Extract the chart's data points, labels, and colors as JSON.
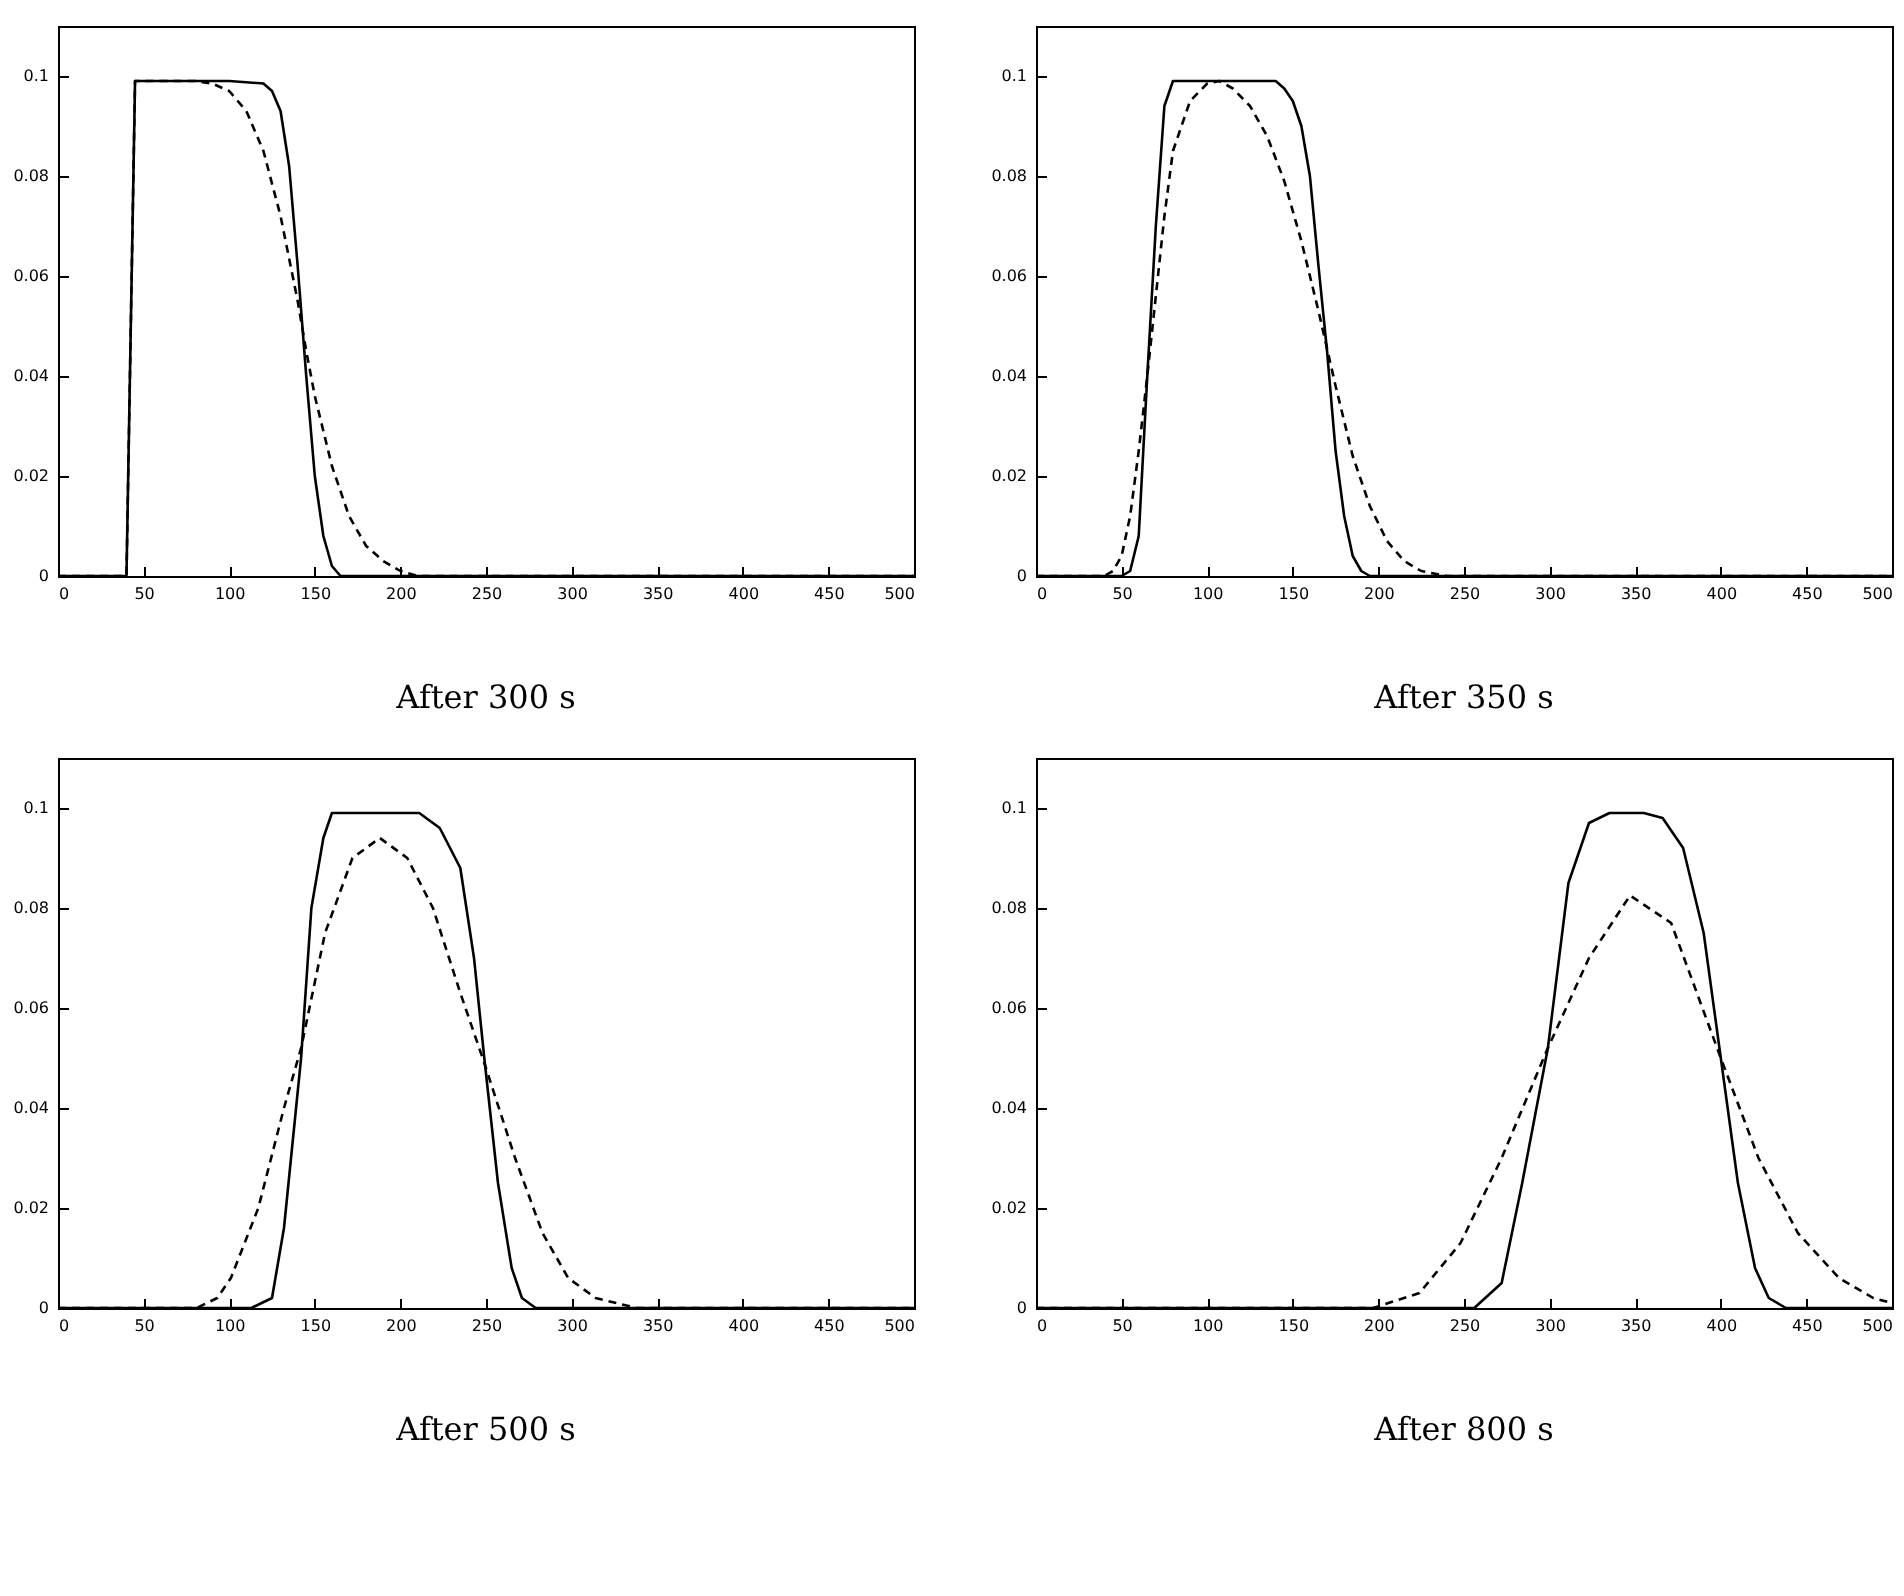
{
  "chart_data": [
    {
      "type": "line",
      "title": "After 300 s",
      "xlim": [
        0,
        500
      ],
      "ylim": [
        0,
        0.11
      ],
      "xticks": [
        0,
        50,
        100,
        150,
        200,
        250,
        300,
        350,
        400,
        450,
        500
      ],
      "yticks": [
        0,
        0.02,
        0.04,
        0.06,
        0.08,
        0.1
      ],
      "grid": false,
      "marker": "none",
      "series": [
        {
          "color": "#000000",
          "line_style": "solid",
          "x": [
            0,
            40,
            45,
            100,
            120,
            125,
            130,
            135,
            140,
            145,
            150,
            155,
            160,
            165,
            500
          ],
          "values": [
            0,
            0,
            0.099,
            0.099,
            0.0985,
            0.097,
            0.093,
            0.082,
            0.062,
            0.04,
            0.02,
            0.008,
            0.002,
            0,
            0
          ]
        },
        {
          "color": "#000000",
          "line_style": "dashed",
          "x": [
            0,
            40,
            45,
            80,
            90,
            100,
            110,
            120,
            130,
            140,
            145,
            150,
            160,
            170,
            180,
            190,
            200,
            210,
            500
          ],
          "values": [
            0,
            0,
            0.099,
            0.099,
            0.0985,
            0.097,
            0.093,
            0.085,
            0.072,
            0.055,
            0.045,
            0.036,
            0.022,
            0.012,
            0.006,
            0.003,
            0.001,
            0,
            0
          ]
        }
      ]
    },
    {
      "type": "line",
      "title": "After 350 s",
      "xlim": [
        0,
        500
      ],
      "ylim": [
        0,
        0.11
      ],
      "xticks": [
        0,
        50,
        100,
        150,
        200,
        250,
        300,
        350,
        400,
        450,
        500
      ],
      "yticks": [
        0,
        0.02,
        0.04,
        0.06,
        0.08,
        0.1
      ],
      "grid": false,
      "marker": "none",
      "series": [
        {
          "color": "#000000",
          "line_style": "solid",
          "x": [
            0,
            50,
            55,
            60,
            65,
            70,
            75,
            80,
            140,
            145,
            150,
            155,
            160,
            165,
            170,
            175,
            180,
            185,
            190,
            195,
            500
          ],
          "values": [
            0,
            0,
            0.001,
            0.008,
            0.04,
            0.07,
            0.094,
            0.099,
            0.099,
            0.0975,
            0.095,
            0.09,
            0.08,
            0.062,
            0.045,
            0.025,
            0.012,
            0.004,
            0.001,
            0,
            0
          ]
        },
        {
          "color": "#000000",
          "line_style": "dashed",
          "x": [
            0,
            40,
            45,
            50,
            55,
            60,
            65,
            70,
            75,
            80,
            90,
            100,
            107,
            115,
            125,
            135,
            145,
            155,
            165,
            175,
            185,
            195,
            205,
            215,
            225,
            240,
            500
          ],
          "values": [
            0,
            0,
            0.001,
            0.004,
            0.012,
            0.025,
            0.04,
            0.056,
            0.072,
            0.085,
            0.095,
            0.0985,
            0.099,
            0.0975,
            0.094,
            0.088,
            0.079,
            0.067,
            0.053,
            0.038,
            0.024,
            0.014,
            0.007,
            0.003,
            0.001,
            0,
            0
          ]
        }
      ]
    },
    {
      "type": "line",
      "title": "After 500 s",
      "xlim": [
        0,
        500
      ],
      "ylim": [
        0,
        0.11
      ],
      "xticks": [
        0,
        50,
        100,
        150,
        200,
        250,
        300,
        350,
        400,
        450,
        500
      ],
      "yticks": [
        0,
        0.02,
        0.04,
        0.06,
        0.08,
        0.1
      ],
      "grid": false,
      "marker": "none",
      "series": [
        {
          "color": "#000000",
          "line_style": "solid",
          "x": [
            0,
            113,
            125,
            132,
            142,
            148,
            155,
            160,
            211,
            223,
            235,
            243,
            249,
            257,
            265,
            271,
            279,
            500
          ],
          "values": [
            0,
            0,
            0.002,
            0.016,
            0.05,
            0.08,
            0.094,
            0.099,
            0.099,
            0.096,
            0.088,
            0.07,
            0.05,
            0.025,
            0.008,
            0.002,
            0,
            0
          ]
        },
        {
          "color": "#000000",
          "line_style": "dashed",
          "x": [
            0,
            81,
            93,
            101,
            117,
            132,
            142,
            156,
            172,
            188,
            204,
            219,
            235,
            249,
            267,
            283,
            298,
            314,
            338,
            500
          ],
          "values": [
            0,
            0,
            0.002,
            0.006,
            0.02,
            0.04,
            0.052,
            0.075,
            0.09,
            0.094,
            0.09,
            0.08,
            0.063,
            0.049,
            0.03,
            0.015,
            0.006,
            0.002,
            0,
            0
          ]
        }
      ]
    },
    {
      "type": "line",
      "title": "After 800 s",
      "xlim": [
        0,
        500
      ],
      "ylim": [
        0,
        0.11
      ],
      "xticks": [
        0,
        50,
        100,
        150,
        200,
        250,
        300,
        350,
        400,
        450,
        500
      ],
      "yticks": [
        0,
        0.02,
        0.04,
        0.06,
        0.08,
        0.1
      ],
      "grid": false,
      "marker": "none",
      "series": [
        {
          "color": "#000000",
          "line_style": "solid",
          "x": [
            0,
            256,
            272,
            284,
            299,
            311,
            323,
            335,
            355,
            366,
            378,
            390,
            400,
            410,
            420,
            428,
            438,
            500
          ],
          "values": [
            0,
            0,
            0.005,
            0.025,
            0.052,
            0.085,
            0.097,
            0.099,
            0.099,
            0.098,
            0.092,
            0.075,
            0.05,
            0.025,
            0.008,
            0.002,
            0,
            0
          ]
        },
        {
          "color": "#000000",
          "line_style": "dashed",
          "x": [
            0,
            197,
            224,
            248,
            272,
            299,
            323,
            347,
            371,
            400,
            422,
            445,
            469,
            489,
            500
          ],
          "values": [
            0,
            0,
            0.003,
            0.013,
            0.03,
            0.052,
            0.07,
            0.0825,
            0.077,
            0.05,
            0.03,
            0.015,
            0.006,
            0.002,
            0.001
          ]
        }
      ]
    }
  ]
}
